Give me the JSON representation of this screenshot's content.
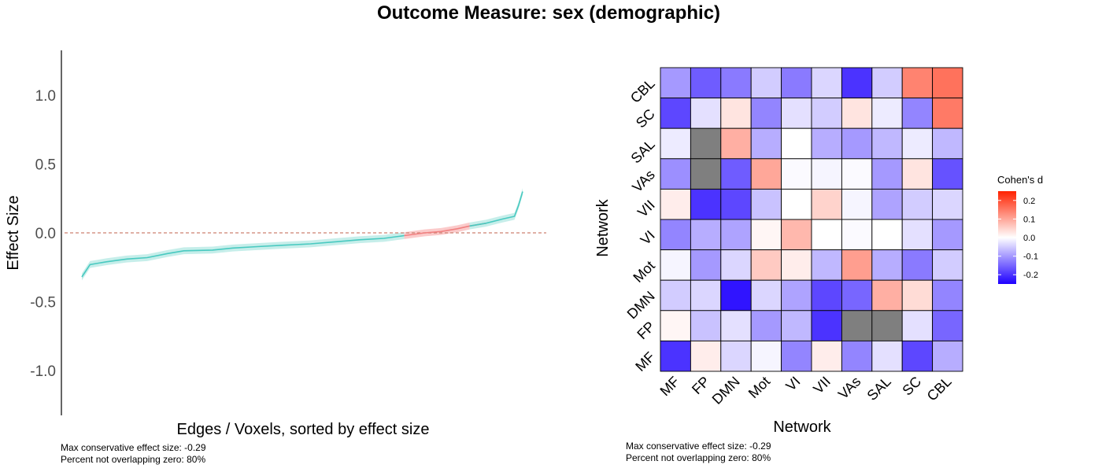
{
  "title": "Outcome Measure: sex (demographic)",
  "colors": {
    "ci_negative": "#48C9C0",
    "ci_positive": "#F08080",
    "band_negative": "#C6EEEA",
    "band_positive": "#FBCACA",
    "zero_line": "#CD8070",
    "heat_low": "#1E00FF",
    "heat_mid": "#FFFFFF",
    "heat_high": "#FF2200",
    "na_cell": "#7F7F7F"
  },
  "chart_data": [
    {
      "type": "line",
      "title": "",
      "xlabel": "Edges / Voxels, sorted by effect size",
      "ylabel": "Effect Size",
      "ylim": [
        -1.3,
        1.3
      ],
      "yticks": [
        "1.0",
        "0.5",
        "0.0",
        "-0.5",
        "-1.0"
      ],
      "ytick_values": [
        1.0,
        0.5,
        0.0,
        -0.5,
        -1.0
      ],
      "zero_line": 0,
      "band_halfwidth": 0.025,
      "x_count": 100,
      "points": [
        [
          1,
          -0.32
        ],
        [
          3,
          -0.23
        ],
        [
          7,
          -0.21
        ],
        [
          12,
          -0.19
        ],
        [
          17,
          -0.18
        ],
        [
          22,
          -0.15
        ],
        [
          26,
          -0.13
        ],
        [
          33,
          -0.125
        ],
        [
          38,
          -0.11
        ],
        [
          44,
          -0.1
        ],
        [
          50,
          -0.09
        ],
        [
          57,
          -0.08
        ],
        [
          63,
          -0.065
        ],
        [
          69,
          -0.05
        ],
        [
          75,
          -0.04
        ],
        [
          80,
          -0.02
        ],
        [
          85,
          0
        ],
        [
          89,
          0.01
        ],
        [
          93,
          0.03
        ],
        [
          96,
          0.05
        ],
        [
          100,
          0.07
        ],
        [
          104,
          0.1
        ],
        [
          107,
          0.12
        ],
        [
          108,
          0.2
        ],
        [
          109,
          0.3
        ]
      ],
      "caption_lines": [
        "Max conservative effect size: -0.29",
        "Percent not overlapping zero: 80%"
      ]
    },
    {
      "type": "heatmap",
      "title": "",
      "xlabel": "Network",
      "ylabel": "Network",
      "x_categories": [
        "MF",
        "FP",
        "DMN",
        "Mot",
        "VI",
        "VII",
        "VAs",
        "SAL",
        "SC",
        "CBL"
      ],
      "y_categories_top_to_bottom": [
        "CBL",
        "SC",
        "SAL",
        "VAs",
        "VII",
        "VI",
        "Mot",
        "DMN",
        "FP",
        "MF"
      ],
      "values_top_to_bottom": [
        [
          -0.1,
          -0.16,
          -0.13,
          -0.05,
          -0.13,
          -0.04,
          -0.2,
          -0.05,
          0.14,
          0.16
        ],
        [
          -0.18,
          -0.03,
          0.03,
          -0.12,
          -0.03,
          -0.05,
          0.03,
          -0.02,
          -0.12,
          0.15
        ],
        [
          -0.02,
          null,
          0.09,
          -0.08,
          0.0,
          -0.08,
          -0.1,
          -0.07,
          -0.02,
          -0.07
        ],
        [
          -0.11,
          null,
          -0.16,
          0.1,
          -0.005,
          -0.01,
          -0.005,
          -0.1,
          0.03,
          -0.17
        ],
        [
          0.02,
          -0.2,
          -0.18,
          -0.06,
          0.0,
          0.05,
          -0.01,
          -0.09,
          -0.05,
          -0.04
        ],
        [
          -0.12,
          -0.08,
          -0.09,
          0.01,
          0.08,
          0.0,
          -0.005,
          0.0,
          -0.03,
          -0.1
        ],
        [
          -0.01,
          -0.1,
          -0.04,
          0.06,
          0.02,
          -0.07,
          0.11,
          -0.08,
          -0.13,
          -0.05
        ],
        [
          -0.05,
          -0.04,
          -0.23,
          -0.04,
          -0.09,
          -0.18,
          -0.15,
          0.09,
          0.04,
          -0.12
        ],
        [
          0.01,
          -0.06,
          -0.03,
          -0.1,
          -0.07,
          -0.2,
          null,
          null,
          -0.03,
          -0.15
        ],
        [
          -0.2,
          0.02,
          -0.04,
          -0.01,
          -0.12,
          0.02,
          -0.12,
          -0.03,
          -0.18,
          -0.08
        ]
      ],
      "legend": {
        "title": "Cohen's d",
        "ticks": [
          "0.2",
          "0.1",
          "0.0",
          "-0.1",
          "-0.2"
        ],
        "tick_values": [
          0.2,
          0.1,
          0.0,
          -0.1,
          -0.2
        ],
        "range": [
          -0.25,
          0.25
        ]
      },
      "caption_lines": [
        "Max conservative effect size: -0.29",
        "Percent not overlapping zero: 80%"
      ]
    }
  ]
}
